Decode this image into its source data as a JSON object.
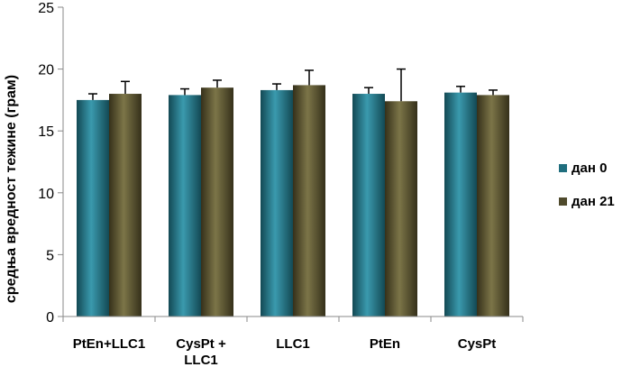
{
  "chart_data": {
    "type": "bar",
    "title": "",
    "xlabel": "",
    "ylabel": "средња вредност тежине (грам)",
    "ylim": [
      0,
      25
    ],
    "yticks": [
      0,
      5,
      10,
      15,
      20,
      25
    ],
    "grid": false,
    "legend_position": "right",
    "categories": [
      [
        "PtEn+LLC1"
      ],
      [
        "CysPt +",
        "LLC1"
      ],
      [
        "LLC1"
      ],
      [
        "PtEn"
      ],
      [
        "CysPt"
      ]
    ],
    "series": [
      {
        "name": "дан 0",
        "color": "#1f6e7e",
        "values": [
          17.5,
          17.9,
          18.3,
          18.0,
          18.1
        ],
        "errors": [
          0.5,
          0.5,
          0.5,
          0.5,
          0.5
        ]
      },
      {
        "name": "дан 21",
        "color": "#4f4a2c",
        "values": [
          18.0,
          18.5,
          18.7,
          17.4,
          17.9
        ],
        "errors": [
          1.0,
          0.6,
          1.2,
          2.6,
          0.4
        ]
      }
    ]
  }
}
